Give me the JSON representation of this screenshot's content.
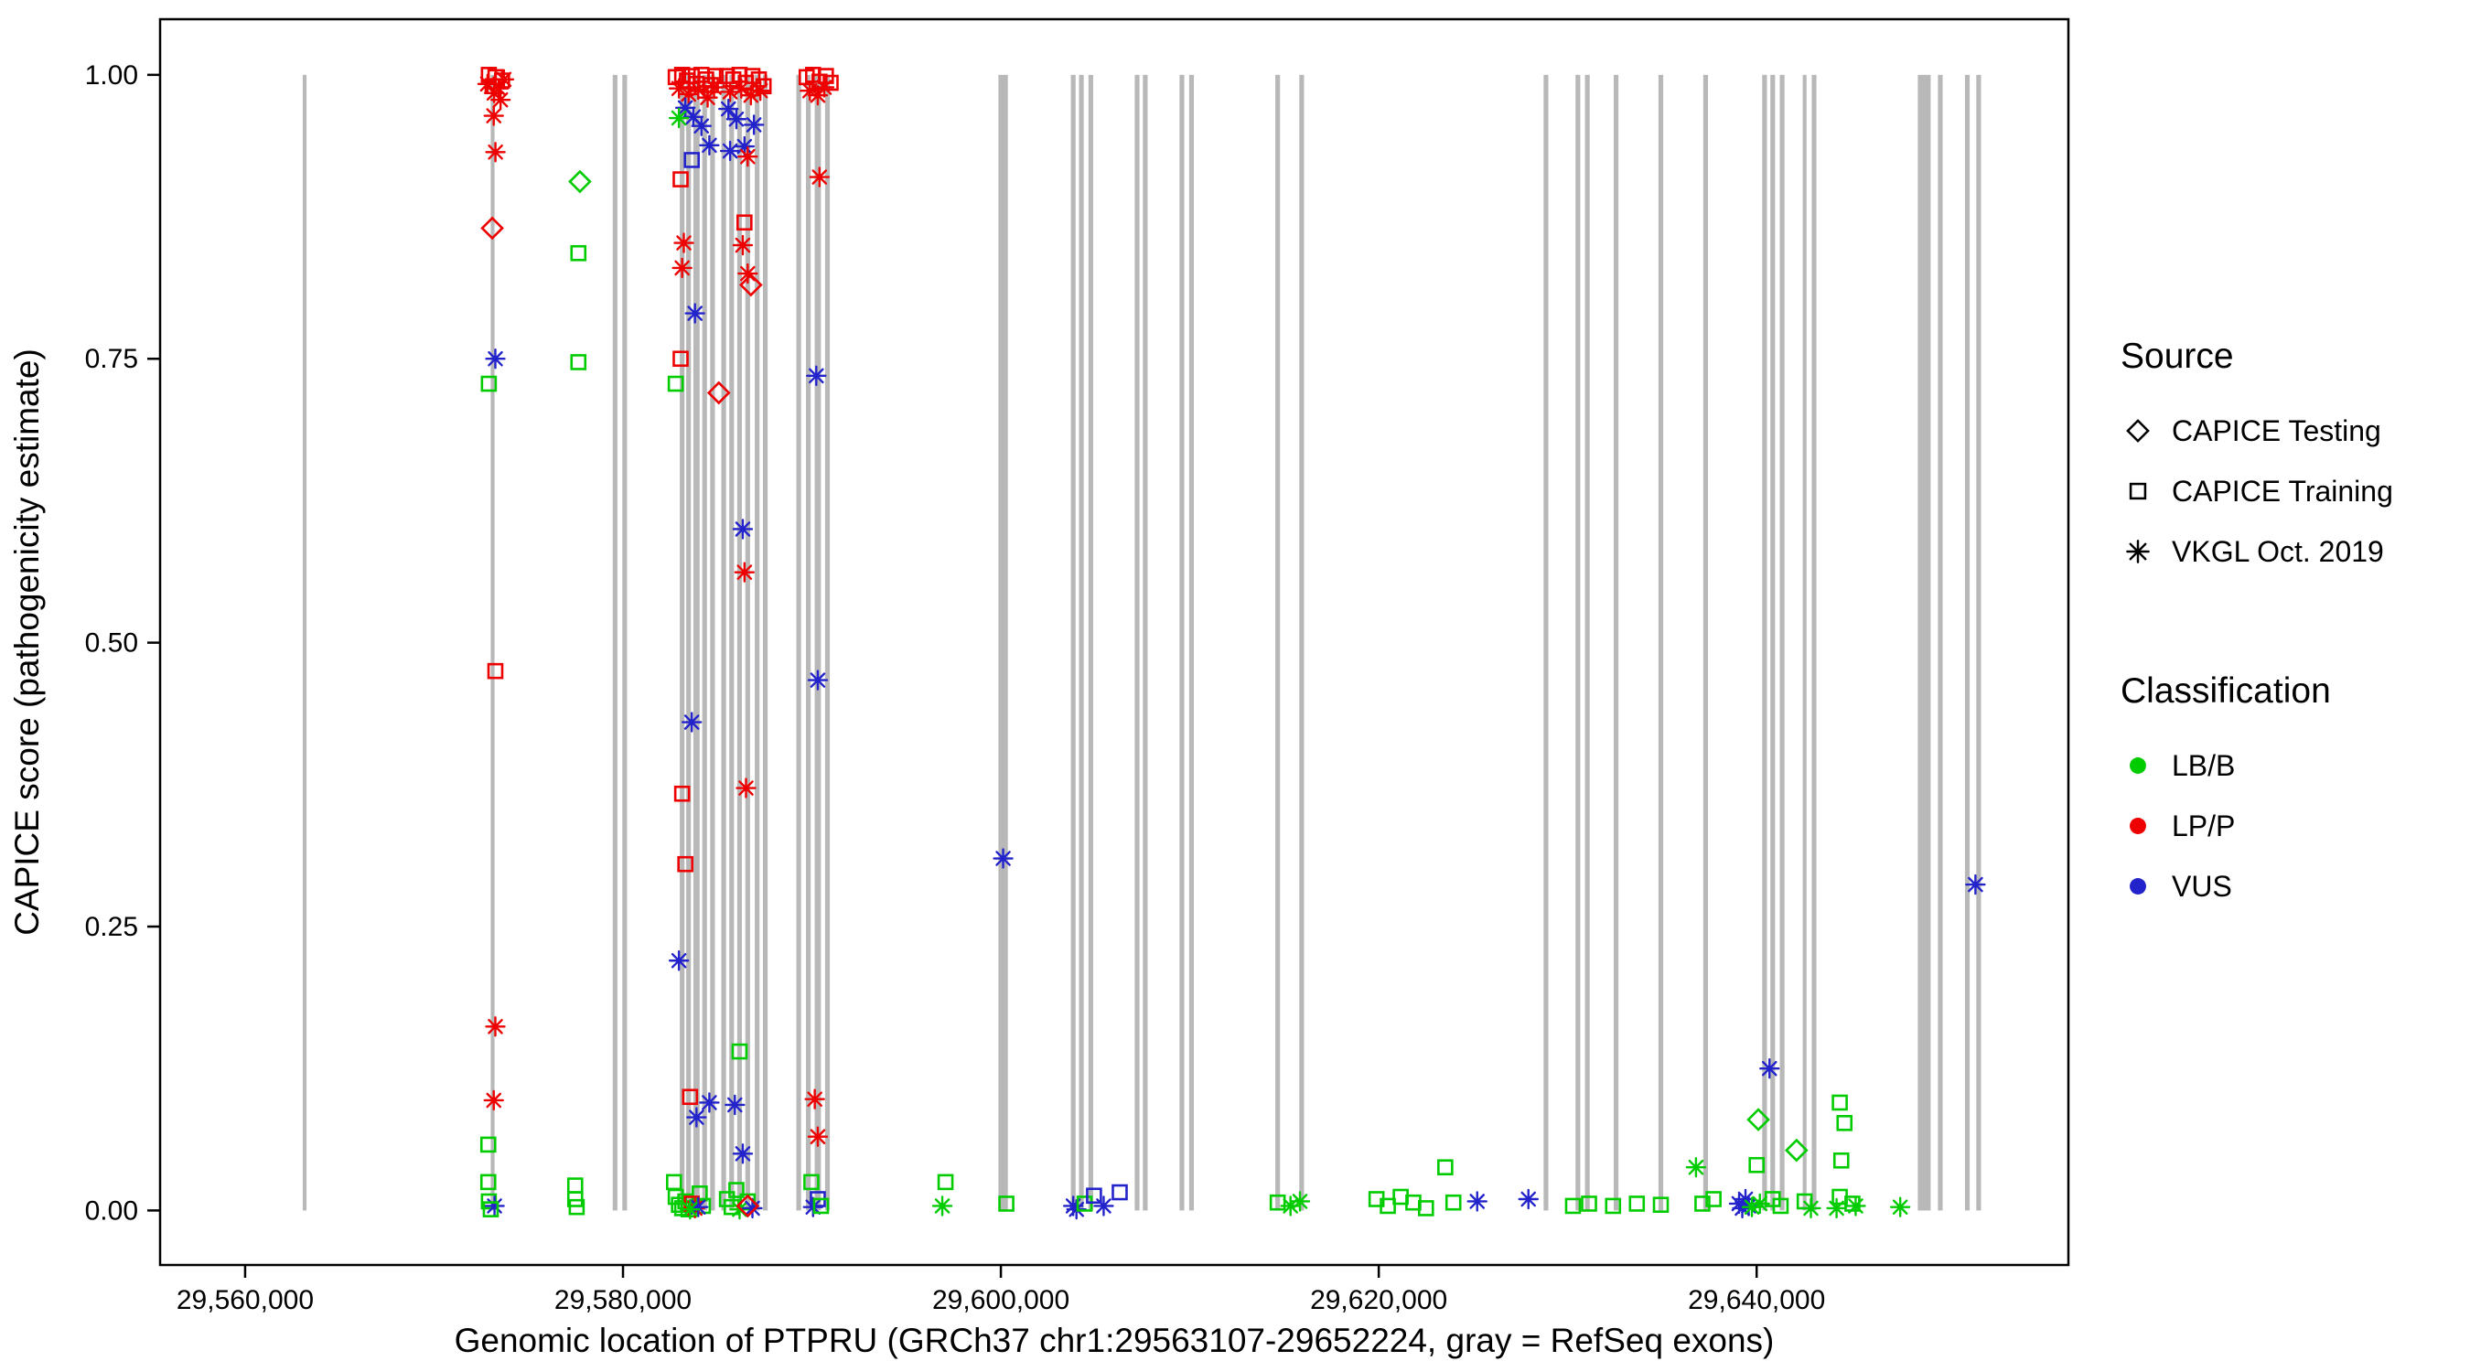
{
  "figure": {
    "background": "#FFFFFF",
    "panel_border": "#000000",
    "exon_color": "#B8B8B8"
  },
  "axes": {
    "x": {
      "label": "Genomic location of PTPRU (GRCh37 chr1:29563107-29652224, gray = RefSeq exons)",
      "domain": [
        29555500,
        29656500
      ],
      "ticks": [
        29560000,
        29580000,
        29600000,
        29620000,
        29640000
      ],
      "tick_labels": [
        "29,560,000",
        "29,580,000",
        "29,600,000",
        "29,620,000",
        "29,640,000"
      ]
    },
    "y": {
      "label": "CAPICE score (pathogenicity estimate)",
      "domain": [
        -0.048,
        1.049
      ],
      "ticks": [
        0.0,
        0.25,
        0.5,
        0.75,
        1.0
      ],
      "tick_labels": [
        "0.00",
        "0.25",
        "0.50",
        "0.75",
        "1.00"
      ]
    }
  },
  "legend": {
    "source": {
      "title": "Source",
      "items": [
        {
          "label": "CAPICE Testing",
          "shape": "diamond"
        },
        {
          "label": "CAPICE Training",
          "shape": "square"
        },
        {
          "label": "VKGL Oct. 2019",
          "shape": "asterisk"
        }
      ]
    },
    "classification": {
      "title": "Classification",
      "items": [
        {
          "label": "LB/B",
          "color": "#00CC00"
        },
        {
          "label": "LP/P",
          "color": "#EE0000"
        },
        {
          "label": "VUS",
          "color": "#2323CC"
        }
      ]
    }
  },
  "chart_data": {
    "type": "scatter",
    "title": "",
    "xlabel": "Genomic location of PTPRU (GRCh37 chr1:29563107-29652224, gray = RefSeq exons)",
    "ylabel": "CAPICE score (pathogenicity estimate)",
    "xlim": [
      29555500,
      29656500
    ],
    "ylim": [
      -0.048,
      1.049
    ],
    "grid": false,
    "legend_position": "right",
    "classes": {
      "LB/B": "#00CC00",
      "LP/P": "#EE0000",
      "VUS": "#2323CC"
    },
    "shapes_legend": {
      "diamond": "CAPICE Testing",
      "square": "CAPICE Training",
      "asterisk": "VKGL Oct. 2019"
    },
    "exons_format": [
      "center_position_bp",
      "width_bp"
    ],
    "exons": [
      [
        29563150,
        200
      ],
      [
        29573100,
        200
      ],
      [
        29579580,
        250
      ],
      [
        29580090,
        250
      ],
      [
        29583130,
        250
      ],
      [
        29583470,
        250
      ],
      [
        29583890,
        330
      ],
      [
        29584320,
        250
      ],
      [
        29584740,
        250
      ],
      [
        29585330,
        250
      ],
      [
        29585750,
        250
      ],
      [
        29586170,
        250
      ],
      [
        29586600,
        250
      ],
      [
        29587100,
        250
      ],
      [
        29587530,
        250
      ],
      [
        29589300,
        250
      ],
      [
        29589810,
        250
      ],
      [
        29590310,
        330
      ],
      [
        29590820,
        250
      ],
      [
        29600120,
        500
      ],
      [
        29603830,
        250
      ],
      [
        29604260,
        250
      ],
      [
        29604760,
        250
      ],
      [
        29607210,
        250
      ],
      [
        29607640,
        250
      ],
      [
        29609580,
        250
      ],
      [
        29610090,
        250
      ],
      [
        29614650,
        250
      ],
      [
        29615920,
        250
      ],
      [
        29628850,
        250
      ],
      [
        29630540,
        250
      ],
      [
        29631040,
        250
      ],
      [
        29632560,
        250
      ],
      [
        29634930,
        250
      ],
      [
        29637300,
        250
      ],
      [
        29640420,
        250
      ],
      [
        29640850,
        250
      ],
      [
        29641350,
        250
      ],
      [
        29642540,
        200
      ],
      [
        29643040,
        250
      ],
      [
        29648870,
        680
      ],
      [
        29649720,
        250
      ],
      [
        29651150,
        250
      ],
      [
        29651750,
        250
      ]
    ],
    "points_format": [
      "genomic_position",
      "capice_score",
      "shape",
      "classification"
    ],
    "points": [
      [
        29572900,
        1.0,
        "square",
        "LP/P"
      ],
      [
        29573250,
        0.998,
        "square",
        "LP/P"
      ],
      [
        29573600,
        0.995,
        "square",
        "LP/P"
      ],
      [
        29573100,
        0.99,
        "square",
        "LP/P"
      ],
      [
        29572830,
        0.992,
        "asterisk",
        "LP/P"
      ],
      [
        29573420,
        0.988,
        "asterisk",
        "LP/P"
      ],
      [
        29573700,
        0.996,
        "asterisk",
        "LP/P"
      ],
      [
        29573180,
        0.984,
        "asterisk",
        "LP/P"
      ],
      [
        29573520,
        0.978,
        "asterisk",
        "LP/P"
      ],
      [
        29573160,
        0.964,
        "asterisk",
        "LP/P"
      ],
      [
        29573250,
        0.932,
        "asterisk",
        "LP/P"
      ],
      [
        29573080,
        0.865,
        "diamond",
        "LP/P"
      ],
      [
        29573245,
        0.75,
        "asterisk",
        "VUS"
      ],
      [
        29572900,
        0.728,
        "square",
        "LB/B"
      ],
      [
        29573245,
        0.475,
        "square",
        "LP/P"
      ],
      [
        29573245,
        0.162,
        "asterisk",
        "LP/P"
      ],
      [
        29573160,
        0.097,
        "asterisk",
        "LP/P"
      ],
      [
        29572870,
        0.058,
        "square",
        "LB/B"
      ],
      [
        29572870,
        0.025,
        "square",
        "LB/B"
      ],
      [
        29572900,
        0.008,
        "square",
        "LB/B"
      ],
      [
        29573200,
        0.004,
        "asterisk",
        "VUS"
      ],
      [
        29573000,
        0.001,
        "square",
        "LB/B"
      ],
      [
        29577720,
        0.906,
        "diamond",
        "LB/B"
      ],
      [
        29577640,
        0.843,
        "square",
        "LB/B"
      ],
      [
        29577640,
        0.747,
        "square",
        "LB/B"
      ],
      [
        29577470,
        0.022,
        "square",
        "LB/B"
      ],
      [
        29577470,
        0.01,
        "square",
        "LB/B"
      ],
      [
        29577550,
        0.003,
        "square",
        "LB/B"
      ],
      [
        29582790,
        0.998,
        "square",
        "LP/P"
      ],
      [
        29583130,
        1.0,
        "square",
        "LP/P"
      ],
      [
        29583385,
        0.995,
        "square",
        "LP/P"
      ],
      [
        29583640,
        0.999,
        "square",
        "LP/P"
      ],
      [
        29583890,
        0.992,
        "square",
        "LP/P"
      ],
      [
        29584150,
        1.0,
        "square",
        "LP/P"
      ],
      [
        29584400,
        0.996,
        "square",
        "LP/P"
      ],
      [
        29584650,
        0.991,
        "square",
        "LP/P"
      ],
      [
        29584900,
        0.999,
        "square",
        "LP/P"
      ],
      [
        29582960,
        0.988,
        "asterisk",
        "LP/P"
      ],
      [
        29583470,
        0.983,
        "asterisk",
        "LP/P"
      ],
      [
        29583980,
        0.987,
        "asterisk",
        "LP/P"
      ],
      [
        29584480,
        0.98,
        "asterisk",
        "LP/P"
      ],
      [
        29584820,
        0.989,
        "asterisk",
        "LP/P"
      ],
      [
        29583300,
        0.971,
        "asterisk",
        "VUS"
      ],
      [
        29583720,
        0.963,
        "asterisk",
        "VUS"
      ],
      [
        29584150,
        0.955,
        "asterisk",
        "VUS"
      ],
      [
        29584570,
        0.938,
        "asterisk",
        "VUS"
      ],
      [
        29582960,
        0.962,
        "asterisk",
        "LB/B"
      ],
      [
        29583640,
        0.925,
        "square",
        "VUS"
      ],
      [
        29583050,
        0.908,
        "square",
        "LP/P"
      ],
      [
        29583220,
        0.852,
        "asterisk",
        "LP/P"
      ],
      [
        29583130,
        0.83,
        "asterisk",
        "LP/P"
      ],
      [
        29583810,
        0.79,
        "asterisk",
        "VUS"
      ],
      [
        29583050,
        0.75,
        "square",
        "LP/P"
      ],
      [
        29582790,
        0.728,
        "square",
        "LB/B"
      ],
      [
        29585070,
        0.72,
        "diamond",
        "LP/P"
      ],
      [
        29583640,
        0.43,
        "asterisk",
        "VUS"
      ],
      [
        29583130,
        0.367,
        "square",
        "LP/P"
      ],
      [
        29583300,
        0.305,
        "square",
        "LP/P"
      ],
      [
        29582960,
        0.22,
        "asterisk",
        "VUS"
      ],
      [
        29583550,
        0.1,
        "square",
        "LP/P"
      ],
      [
        29583890,
        0.082,
        "asterisk",
        "VUS"
      ],
      [
        29584570,
        0.095,
        "asterisk",
        "VUS"
      ],
      [
        29582700,
        0.025,
        "square",
        "LB/B"
      ],
      [
        29582790,
        0.012,
        "square",
        "LB/B"
      ],
      [
        29582960,
        0.005,
        "square",
        "LB/B"
      ],
      [
        29583130,
        0.002,
        "square",
        "LB/B"
      ],
      [
        29583300,
        0.008,
        "square",
        "LB/B"
      ],
      [
        29583470,
        0.001,
        "square",
        "LB/B"
      ],
      [
        29584060,
        0.015,
        "square",
        "LB/B"
      ],
      [
        29584230,
        0.004,
        "square",
        "LB/B"
      ],
      [
        29583640,
        0.006,
        "square",
        "LP/P"
      ],
      [
        29583810,
        0.002,
        "asterisk",
        "LP/P"
      ],
      [
        29583980,
        0.003,
        "asterisk",
        "VUS"
      ],
      [
        29583550,
        0.001,
        "asterisk",
        "LB/B"
      ],
      [
        29585500,
        0.999,
        "square",
        "LP/P"
      ],
      [
        29585840,
        0.996,
        "square",
        "LP/P"
      ],
      [
        29586170,
        1.0,
        "square",
        "LP/P"
      ],
      [
        29586510,
        0.993,
        "square",
        "LP/P"
      ],
      [
        29586850,
        0.999,
        "square",
        "LP/P"
      ],
      [
        29587190,
        0.996,
        "square",
        "LP/P"
      ],
      [
        29587440,
        0.99,
        "square",
        "LP/P"
      ],
      [
        29585670,
        0.985,
        "asterisk",
        "LP/P"
      ],
      [
        29586260,
        0.988,
        "asterisk",
        "LP/P"
      ],
      [
        29586770,
        0.982,
        "asterisk",
        "LP/P"
      ],
      [
        29587270,
        0.986,
        "asterisk",
        "LP/P"
      ],
      [
        29585580,
        0.97,
        "asterisk",
        "VUS"
      ],
      [
        29586000,
        0.961,
        "asterisk",
        "VUS"
      ],
      [
        29585670,
        0.933,
        "asterisk",
        "VUS"
      ],
      [
        29586430,
        0.937,
        "asterisk",
        "VUS"
      ],
      [
        29586930,
        0.956,
        "asterisk",
        "VUS"
      ],
      [
        29586600,
        0.928,
        "asterisk",
        "LP/P"
      ],
      [
        29586430,
        0.87,
        "square",
        "LP/P"
      ],
      [
        29586770,
        0.815,
        "diamond",
        "LP/P"
      ],
      [
        29586340,
        0.85,
        "asterisk",
        "LP/P"
      ],
      [
        29586600,
        0.825,
        "asterisk",
        "LP/P"
      ],
      [
        29586340,
        0.6,
        "asterisk",
        "VUS"
      ],
      [
        29586430,
        0.562,
        "asterisk",
        "LP/P"
      ],
      [
        29586510,
        0.372,
        "asterisk",
        "LP/P"
      ],
      [
        29586170,
        0.14,
        "square",
        "LB/B"
      ],
      [
        29585920,
        0.093,
        "asterisk",
        "VUS"
      ],
      [
        29586340,
        0.05,
        "asterisk",
        "VUS"
      ],
      [
        29585500,
        0.01,
        "square",
        "LB/B"
      ],
      [
        29585750,
        0.003,
        "square",
        "LB/B"
      ],
      [
        29586000,
        0.018,
        "square",
        "LB/B"
      ],
      [
        29586170,
        0.001,
        "asterisk",
        "LB/B"
      ],
      [
        29586600,
        0.008,
        "square",
        "LB/B"
      ],
      [
        29586850,
        0.002,
        "asterisk",
        "VUS"
      ],
      [
        29586600,
        0.004,
        "diamond",
        "LP/P"
      ],
      [
        29589720,
        0.998,
        "square",
        "LP/P"
      ],
      [
        29590060,
        1.0,
        "square",
        "LP/P"
      ],
      [
        29590400,
        0.994,
        "square",
        "LP/P"
      ],
      [
        29590740,
        0.999,
        "square",
        "LP/P"
      ],
      [
        29590990,
        0.993,
        "square",
        "LP/P"
      ],
      [
        29589890,
        0.986,
        "asterisk",
        "LP/P"
      ],
      [
        29590310,
        0.982,
        "asterisk",
        "LP/P"
      ],
      [
        29590650,
        0.989,
        "asterisk",
        "LP/P"
      ],
      [
        29590400,
        0.91,
        "asterisk",
        "LP/P"
      ],
      [
        29590230,
        0.735,
        "asterisk",
        "VUS"
      ],
      [
        29590310,
        0.467,
        "asterisk",
        "VUS"
      ],
      [
        29590150,
        0.098,
        "asterisk",
        "LP/P"
      ],
      [
        29590310,
        0.065,
        "asterisk",
        "LP/P"
      ],
      [
        29589970,
        0.025,
        "square",
        "LB/B"
      ],
      [
        29590310,
        0.01,
        "square",
        "VUS"
      ],
      [
        29590060,
        0.003,
        "asterisk",
        "VUS"
      ],
      [
        29590480,
        0.004,
        "square",
        "LB/B"
      ],
      [
        29597070,
        0.025,
        "square",
        "LB/B"
      ],
      [
        29596900,
        0.004,
        "asterisk",
        "LB/B"
      ],
      [
        29600290,
        0.006,
        "square",
        "LB/B"
      ],
      [
        29600120,
        0.31,
        "asterisk",
        "VUS"
      ],
      [
        29603830,
        0.004,
        "asterisk",
        "VUS"
      ],
      [
        29604000,
        0.001,
        "asterisk",
        "VUS"
      ],
      [
        29604430,
        0.006,
        "square",
        "LB/B"
      ],
      [
        29604930,
        0.013,
        "square",
        "VUS"
      ],
      [
        29605440,
        0.004,
        "asterisk",
        "VUS"
      ],
      [
        29606290,
        0.016,
        "square",
        "VUS"
      ],
      [
        29614650,
        0.007,
        "square",
        "LB/B"
      ],
      [
        29615330,
        0.004,
        "asterisk",
        "LB/B"
      ],
      [
        29615830,
        0.008,
        "asterisk",
        "LB/B"
      ],
      [
        29619880,
        0.01,
        "square",
        "LB/B"
      ],
      [
        29620480,
        0.004,
        "square",
        "LB/B"
      ],
      [
        29621160,
        0.012,
        "square",
        "LB/B"
      ],
      [
        29621830,
        0.007,
        "square",
        "LB/B"
      ],
      [
        29622500,
        0.002,
        "square",
        "LB/B"
      ],
      [
        29623520,
        0.038,
        "square",
        "LB/B"
      ],
      [
        29623950,
        0.007,
        "square",
        "LB/B"
      ],
      [
        29625210,
        0.008,
        "asterisk",
        "VUS"
      ],
      [
        29627920,
        0.01,
        "asterisk",
        "VUS"
      ],
      [
        29630280,
        0.004,
        "square",
        "LB/B"
      ],
      [
        29631130,
        0.006,
        "square",
        "LB/B"
      ],
      [
        29632400,
        0.004,
        "square",
        "LB/B"
      ],
      [
        29633660,
        0.006,
        "square",
        "LB/B"
      ],
      [
        29634930,
        0.005,
        "square",
        "LB/B"
      ],
      [
        29636790,
        0.038,
        "asterisk",
        "LB/B"
      ],
      [
        29637130,
        0.006,
        "square",
        "LB/B"
      ],
      [
        29637720,
        0.01,
        "square",
        "LB/B"
      ],
      [
        29639070,
        0.006,
        "asterisk",
        "VUS"
      ],
      [
        29639240,
        0.002,
        "asterisk",
        "VUS"
      ],
      [
        29639410,
        0.01,
        "asterisk",
        "VUS"
      ],
      [
        29639580,
        0.004,
        "asterisk",
        "VUS"
      ],
      [
        29639750,
        0.003,
        "asterisk",
        "LB/B"
      ],
      [
        29640000,
        0.04,
        "square",
        "LB/B"
      ],
      [
        29640090,
        0.08,
        "diamond",
        "LB/B"
      ],
      [
        29640680,
        0.125,
        "asterisk",
        "VUS"
      ],
      [
        29640170,
        0.006,
        "asterisk",
        "LB/B"
      ],
      [
        29640850,
        0.01,
        "square",
        "LB/B"
      ],
      [
        29641270,
        0.004,
        "square",
        "LB/B"
      ],
      [
        29642110,
        0.053,
        "diamond",
        "LB/B"
      ],
      [
        29642540,
        0.008,
        "square",
        "LB/B"
      ],
      [
        29642870,
        0.002,
        "asterisk",
        "LB/B"
      ],
      [
        29644400,
        0.095,
        "square",
        "LB/B"
      ],
      [
        29644650,
        0.077,
        "square",
        "LB/B"
      ],
      [
        29644480,
        0.044,
        "square",
        "LB/B"
      ],
      [
        29644400,
        0.012,
        "square",
        "LB/B"
      ],
      [
        29645070,
        0.006,
        "square",
        "LB/B"
      ],
      [
        29644230,
        0.002,
        "asterisk",
        "LB/B"
      ],
      [
        29645240,
        0.004,
        "asterisk",
        "LB/B"
      ],
      [
        29647600,
        0.003,
        "asterisk",
        "LB/B"
      ],
      [
        29651580,
        0.287,
        "asterisk",
        "VUS"
      ]
    ]
  }
}
